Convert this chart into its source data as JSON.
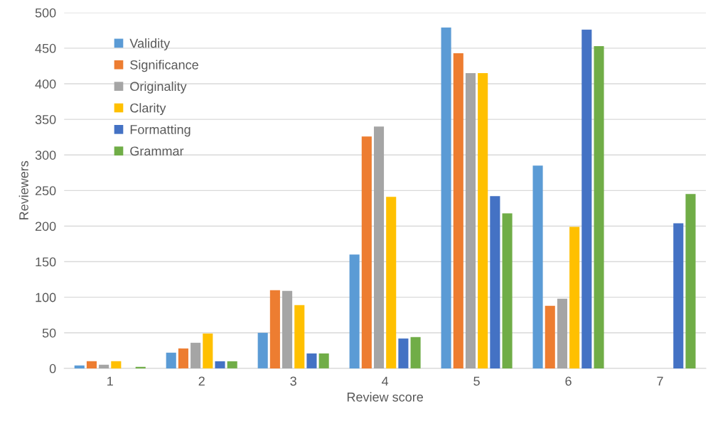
{
  "chart_data": {
    "type": "bar",
    "xlabel": "Review score",
    "ylabel": "Reviewers",
    "categories": [
      "1",
      "2",
      "3",
      "4",
      "5",
      "6",
      "7"
    ],
    "series": [
      {
        "name": "Validity",
        "color": "#5b9bd5",
        "values": [
          4,
          22,
          50,
          160,
          479,
          285,
          0
        ]
      },
      {
        "name": "Significance",
        "color": "#ed7d31",
        "values": [
          10,
          28,
          110,
          326,
          443,
          88,
          0
        ]
      },
      {
        "name": "Originality",
        "color": "#a5a5a5",
        "values": [
          5,
          36,
          109,
          340,
          415,
          98,
          0
        ]
      },
      {
        "name": "Clarity",
        "color": "#ffc000",
        "values": [
          10,
          49,
          89,
          241,
          415,
          199,
          0
        ]
      },
      {
        "name": "Formatting",
        "color": "#4472c4",
        "values": [
          0,
          10,
          21,
          42,
          242,
          476,
          204
        ]
      },
      {
        "name": "Grammar",
        "color": "#70ad47",
        "values": [
          2,
          10,
          21,
          44,
          218,
          453,
          245
        ]
      }
    ],
    "ylim": [
      0,
      500
    ],
    "yticks": [
      0,
      50,
      100,
      150,
      200,
      250,
      300,
      350,
      400,
      450,
      500
    ],
    "grid": "y",
    "legend": "top left"
  }
}
